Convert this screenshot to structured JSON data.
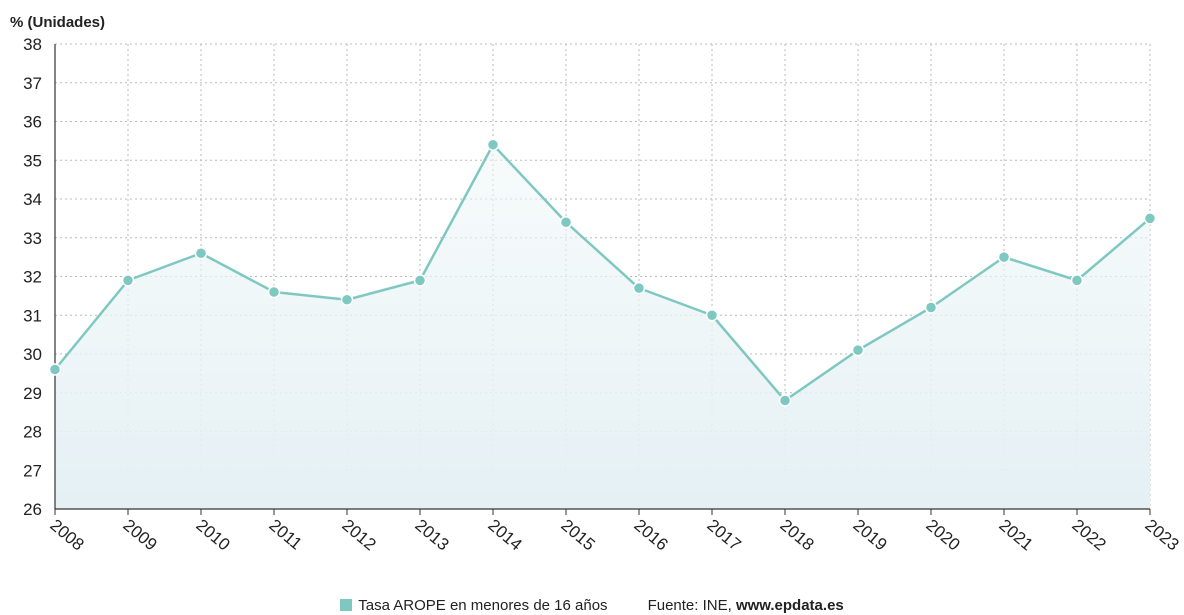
{
  "chart_data": {
    "type": "line",
    "ylabel": "% (Unidades)",
    "x": [
      "2008",
      "2009",
      "2010",
      "2011",
      "2012",
      "2013",
      "2014",
      "2015",
      "2016",
      "2017",
      "2018",
      "2019",
      "2020",
      "2021",
      "2022",
      "2023"
    ],
    "series": [
      {
        "name": "Tasa AROPE en menores de 16 años",
        "values": [
          29.6,
          31.9,
          32.6,
          31.6,
          31.4,
          31.9,
          35.4,
          33.4,
          31.7,
          31.0,
          28.8,
          30.1,
          31.2,
          32.5,
          31.9,
          33.5
        ]
      }
    ],
    "ylim": [
      26,
      38
    ],
    "yticks": [
      26,
      27,
      28,
      29,
      30,
      31,
      32,
      33,
      34,
      35,
      36,
      37,
      38
    ],
    "grid": true,
    "area_fill": true,
    "line_color": "#7fc8c2",
    "fill_color": "#eaf4f6",
    "grid_color": "#bbbbbb",
    "legend_position": "bottom"
  },
  "footer": {
    "legend_label": "Tasa AROPE en menores de 16 años",
    "source_prefix": "Fuente: INE, ",
    "source_site": "www.epdata.es"
  }
}
